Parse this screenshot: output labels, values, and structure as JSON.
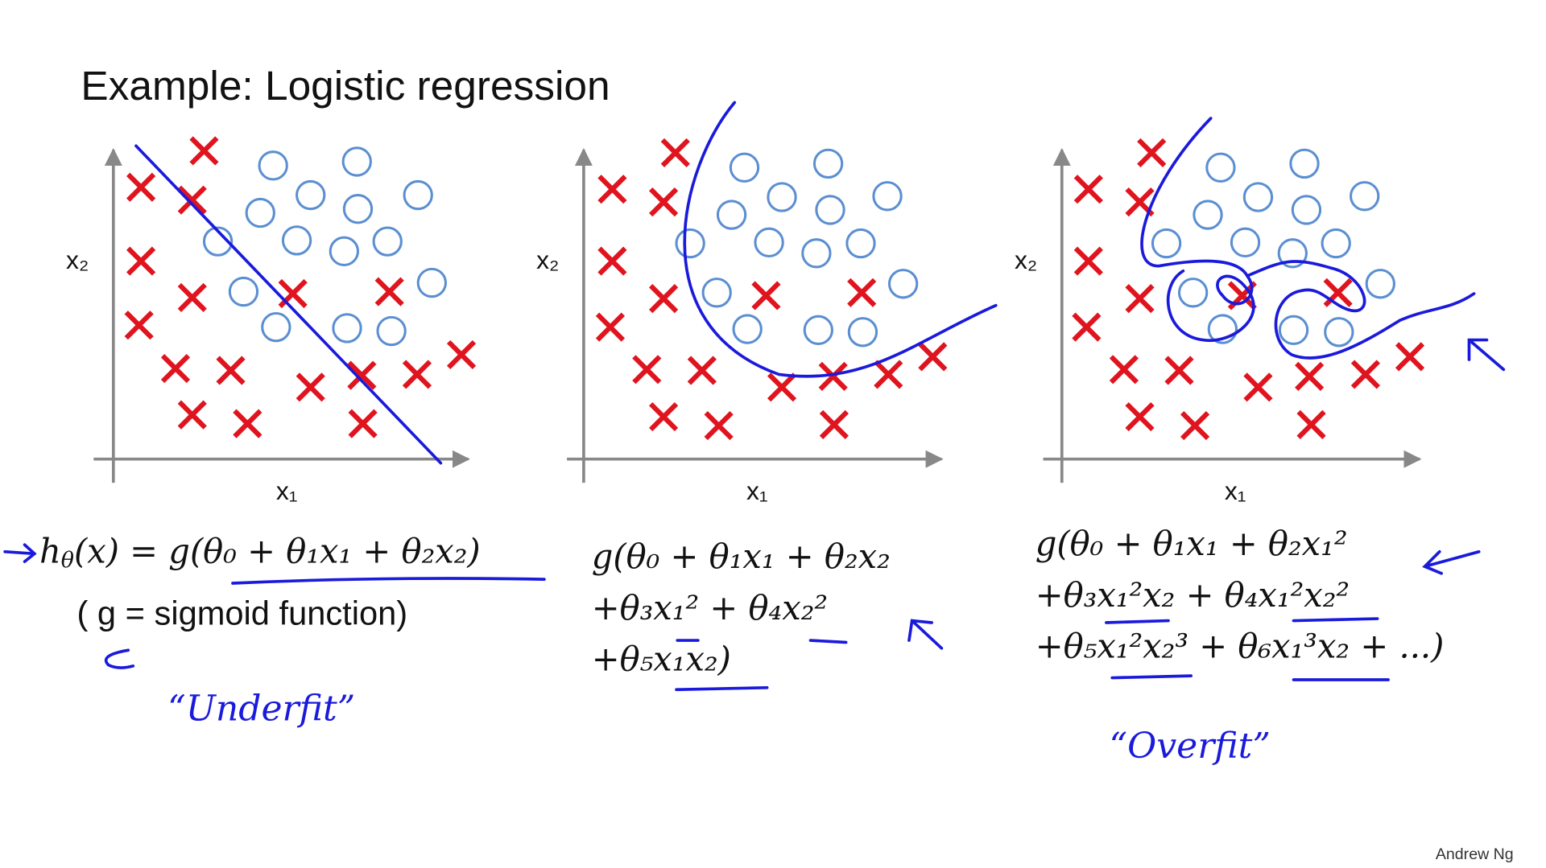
{
  "header": {
    "title": "Example: Logistic regression"
  },
  "panels": [
    {
      "y_axis_label": "x₂",
      "x_axis_label": "x₁",
      "formula": {
        "lhs": "h",
        "lhs_subscript": "θ",
        "rhs": "(x) = g(θ₀ + θ₁x₁ + θ₂x₂)"
      },
      "note": "( g = sigmoid function)",
      "label": "“Underfit”"
    },
    {
      "y_axis_label": "x₂",
      "x_axis_label": "x₁",
      "lines": [
        "g(θ₀ + θ₁x₁ + θ₂x₂",
        "+θ₃x₁² + θ₄x₂²",
        "+θ₅x₁x₂)"
      ]
    },
    {
      "y_axis_label": "x₂",
      "x_axis_label": "x₁",
      "lines": [
        "g(θ₀ + θ₁x₁ + θ₂x₁²",
        "+θ₃x₁²x₂ + θ₄x₁²x₂²",
        "+θ₅x₁²x₂³ + θ₆x₁³x₂ + ...)"
      ],
      "label": "“Overfit”"
    }
  ],
  "footer": {
    "author": "Andrew Ng"
  }
}
